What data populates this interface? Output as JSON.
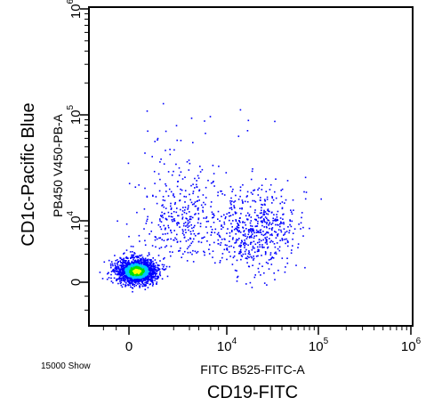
{
  "chart_data": {
    "type": "scatter",
    "subtype": "flow-cytometry-density-dot-plot",
    "x_channel_label": "FITC B525-FITC-A",
    "x_marker_label": "CD19-FITC",
    "y_channel_label": "PB450 V450-PB-A",
    "y_marker_label": "CD1c-Pacific Blue",
    "event_count_label": "15000 Show",
    "x_scale": "biexponential",
    "y_scale": "biexponential",
    "x_ticks": [
      {
        "value": 0,
        "base": "0",
        "exp": ""
      },
      {
        "value": 10000,
        "base": "10",
        "exp": "4"
      },
      {
        "value": 100000,
        "base": "10",
        "exp": "5"
      },
      {
        "value": 1000000,
        "base": "10",
        "exp": "6"
      }
    ],
    "y_ticks": [
      {
        "value": 0,
        "base": "0",
        "exp": ""
      },
      {
        "value": 10000,
        "base": "10",
        "exp": "4"
      },
      {
        "value": 100000,
        "base": "10",
        "exp": "5"
      },
      {
        "value": 1000000,
        "base": "10",
        "exp": "6"
      }
    ],
    "xlim": [
      -3000,
      1000000
    ],
    "ylim": [
      -3000,
      1000000
    ],
    "grid": false,
    "populations": [
      {
        "label": "",
        "center_x": 0,
        "center_y": 0,
        "density": "high",
        "color_scale": [
          "#0000ff",
          "#00c8ff",
          "#00e000",
          "#ffff00"
        ]
      },
      {
        "label": "",
        "center_x": 1500,
        "center_y": 2000,
        "density": "low",
        "color_scale": [
          "#0000ff"
        ]
      },
      {
        "label": "",
        "center_x": 22000,
        "center_y": 3500,
        "density": "low",
        "color_scale": [
          "#0000ff"
        ]
      }
    ]
  }
}
